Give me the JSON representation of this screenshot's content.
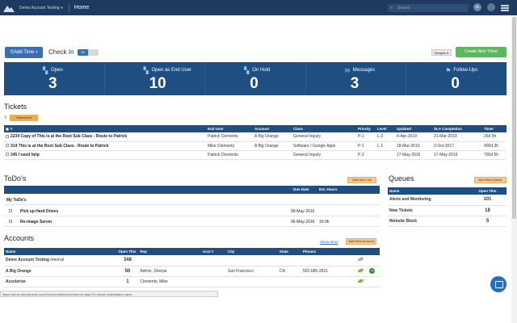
{
  "topnav": {
    "account": "Demo Account Testing",
    "home": "Home",
    "search_placeholder": "Search"
  },
  "toolbar": {
    "add_time": "Add Time",
    "check_in": "Check In",
    "toggle_state": "IN",
    "widgets": "Widgets",
    "new_ticket": "Create New Ticket"
  },
  "stats": [
    {
      "label": "Open",
      "value": "3",
      "icon": "ticket-icon"
    },
    {
      "label": "Open as End User",
      "value": "10",
      "icon": "user-ticket-icon"
    },
    {
      "label": "On Hold",
      "value": "0",
      "icon": "hold-icon"
    },
    {
      "label": "Messages",
      "value": "3",
      "icon": "envelope-icon"
    },
    {
      "label": "Follow-Ups",
      "value": "0",
      "icon": "followup-icon"
    }
  ],
  "tickets": {
    "title": "Tickets",
    "selected_btn": "Selected",
    "columns": [
      "#",
      "End User",
      "Account",
      "Class",
      "Priority",
      "Level",
      "Updated",
      "SLA Completion",
      "Timer"
    ],
    "rows": [
      {
        "id": "2234",
        "subject": "Copy of This is at the Root Sub Class - Route to Patrick",
        "user": "Patrick Clements",
        "account": "A Big Orange",
        "class": "General Inquiry",
        "priority": "P-1",
        "level": "L-2",
        "updated": "4-Apr-2019",
        "sla": "21-Mar-2019",
        "timer": "26d 5h"
      },
      {
        "id": "314",
        "subject": "This is at the Root Sub Class - Route to Patrick",
        "user": "Mike Clements",
        "account": "A Big Orange",
        "class": "Software / Google Apps",
        "priority": "P-1",
        "level": "L-1",
        "updated": "18-Mar-2019",
        "sla": "2-Oct-2017",
        "timer": "400d 3h"
      },
      {
        "id": "245",
        "subject": "I need help",
        "user": "Patrick Clements",
        "account": "",
        "class": "General Inquiry",
        "priority": "P-2",
        "level": "",
        "updated": "17-May-2016",
        "sla": "17-May-2016",
        "timer": "700d 5h"
      }
    ]
  },
  "todos": {
    "title": "ToDo's",
    "add_btn": "Add New List",
    "col_due": "Due Date",
    "col_hours": "Est. Hours",
    "group": "My ToDo's",
    "items": [
      {
        "name": "Pick up Hard Drives",
        "due": "09-May-2016",
        "hours": ""
      },
      {
        "name": "Re-image Server",
        "due": "06-May-2016",
        "hours": "16:0h"
      }
    ]
  },
  "queues": {
    "title": "Queues",
    "add_btn": "Add New Queue",
    "columns": [
      "Name",
      "Open Tkts"
    ],
    "rows": [
      {
        "name": "Alerts and Monitoring",
        "count": "101"
      },
      {
        "name": "New Tickets",
        "count": "18"
      },
      {
        "name": "Website Block",
        "count": "5"
      }
    ]
  },
  "accounts": {
    "title": "Accounts",
    "show_more": "Show More",
    "add_btn": "Add New Account",
    "columns": [
      "Name",
      "Open Tkts",
      "Rep",
      "Acct #",
      "City",
      "State",
      "Phone1"
    ],
    "rows": [
      {
        "name": "Demo Account Testing",
        "suffix": "Internal",
        "tk": "348",
        "rep": "",
        "acct": "",
        "city": "",
        "state": "",
        "phone": "",
        "leaf": "gray",
        "badge": ""
      },
      {
        "name": "A Big Orange",
        "suffix": "",
        "tk": "50",
        "rep": "Admin, Sherpa",
        "acct": "",
        "city": "San Francisco",
        "state": "CA",
        "phone": "502-685-3521",
        "leaf": "green",
        "badge": "GS"
      },
      {
        "name": "Accelerize",
        "suffix": "",
        "tk": "1",
        "rep": "Clements, Mike",
        "acct": "",
        "city": "",
        "state": "",
        "phone": "",
        "leaf": "green",
        "badge": ""
      }
    ]
  },
  "statusbar": "https://demo.sherpadesk.com/home/workflow/workbench.aspx?t=1&sort=null&status=open",
  "colors": {
    "nav": "#1e3a5f",
    "header": "#1f4e82",
    "accent": "#3a6fb0",
    "green": "#5cb85c",
    "orange": "#f0ad4e"
  }
}
